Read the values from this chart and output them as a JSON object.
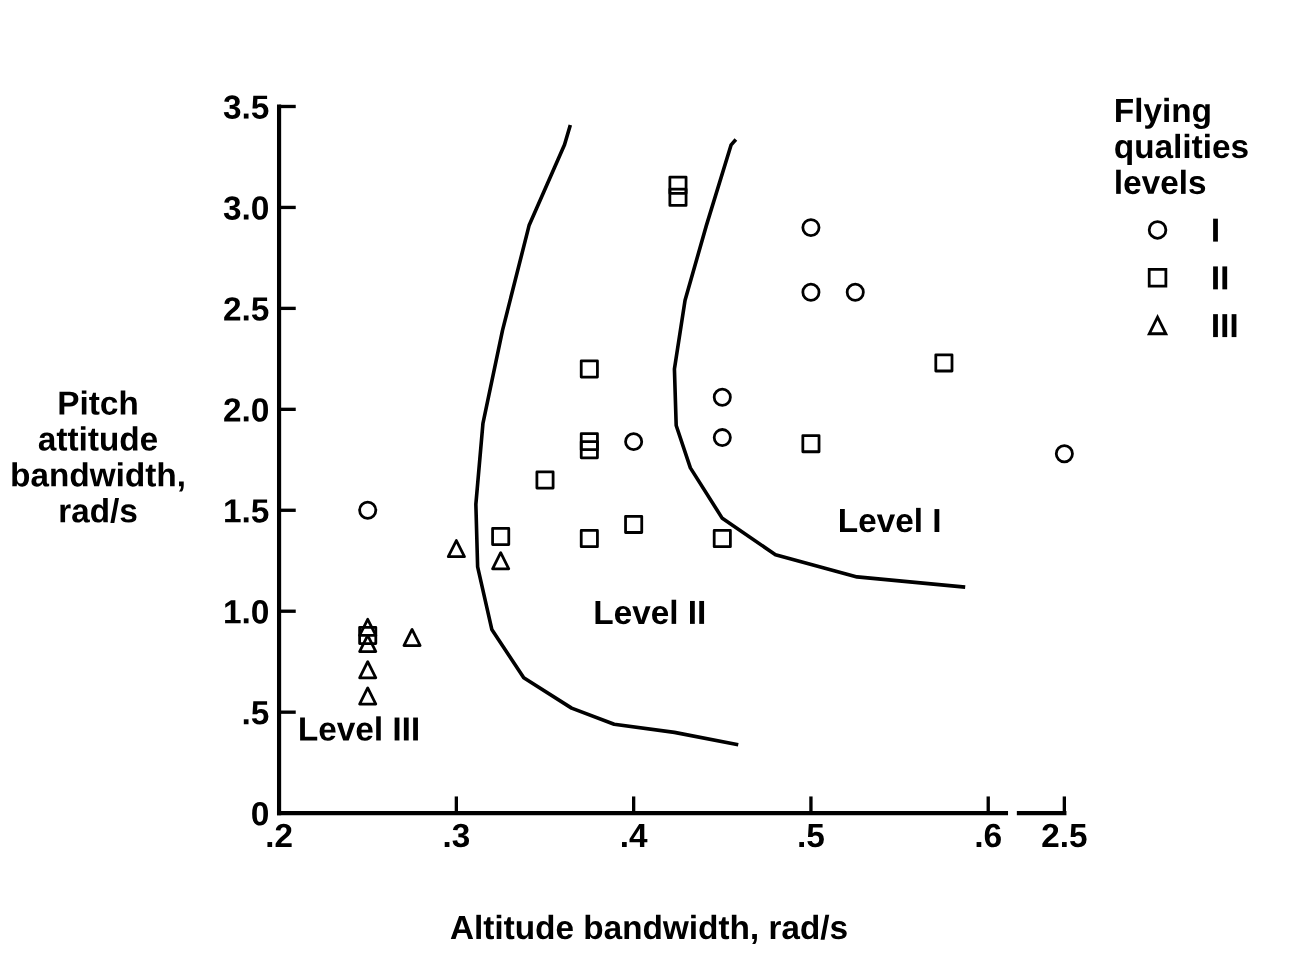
{
  "chart_data": [
    {
      "type": "scatter",
      "xlabel": "Altitude bandwidth, rad/s",
      "ylabel": "Pitch\nattitude\nbandwidth,\nrad/s",
      "legend_title": "Flying\nqualities\nlevels",
      "legend": "right",
      "xlim": [
        0.2,
        0.61
      ],
      "ylim": [
        0,
        3.5
      ],
      "xticks": [
        {
          "value": 0.2,
          "label": ".2"
        },
        {
          "value": 0.3,
          "label": ".3"
        },
        {
          "value": 0.4,
          "label": ".4"
        },
        {
          "value": 0.5,
          "label": ".5"
        },
        {
          "value": 0.6,
          "label": ".6"
        }
      ],
      "yticks": [
        0,
        {
          "value": 0.5,
          "label": ".5"
        },
        {
          "value": 1.0,
          "label": "1.0"
        },
        {
          "value": 1.5,
          "label": "1.5"
        },
        {
          "value": 2.0,
          "label": "2.0"
        },
        {
          "value": 2.5,
          "label": "2.5"
        },
        {
          "value": 3.0,
          "label": "3.0"
        },
        {
          "value": 3.5,
          "label": "3.5"
        }
      ],
      "grid": false,
      "annotations": [
        "Level I",
        "Level II",
        "Level III"
      ],
      "series": [
        {
          "name": "I",
          "marker": "circle",
          "color": "#000000",
          "x": [
            0.25,
            0.4,
            0.45,
            0.45,
            0.5,
            0.5,
            0.525
          ],
          "values": [
            1.5,
            1.84,
            2.06,
            1.86,
            2.9,
            2.58,
            2.58
          ]
        },
        {
          "name": "II",
          "marker": "square",
          "color": "#000000",
          "x": [
            0.25,
            0.325,
            0.35,
            0.375,
            0.375,
            0.375,
            0.375,
            0.4,
            0.425,
            0.425,
            0.45,
            0.5,
            0.575
          ],
          "values": [
            0.88,
            1.37,
            1.65,
            2.2,
            1.84,
            1.8,
            1.36,
            1.43,
            3.05,
            3.11,
            1.36,
            1.83,
            2.23
          ]
        },
        {
          "name": "III",
          "marker": "triangle",
          "color": "#000000",
          "x": [
            0.25,
            0.25,
            0.25,
            0.25,
            0.275,
            0.3,
            0.325
          ],
          "values": [
            0.92,
            0.84,
            0.71,
            0.58,
            0.87,
            1.31,
            1.25
          ]
        },
        {
          "type": "line",
          "marker": "none",
          "color": "#000000",
          "x": [
            0.364,
            0.361,
            0.341,
            0.326,
            0.315,
            0.311,
            0.312,
            0.32,
            0.338,
            0.365,
            0.389,
            0.423,
            0.458
          ],
          "values": [
            3.4,
            3.31,
            2.91,
            2.39,
            1.93,
            1.53,
            1.22,
            0.91,
            0.67,
            0.52,
            0.44,
            0.4,
            0.34
          ]
        },
        {
          "type": "line",
          "marker": "none",
          "color": "#000000",
          "x": [
            0.457,
            0.455,
            0.441,
            0.429,
            0.423,
            0.424,
            0.432,
            0.45,
            0.48,
            0.526,
            0.586
          ],
          "values": [
            3.33,
            3.31,
            2.91,
            2.54,
            2.2,
            1.92,
            1.71,
            1.46,
            1.28,
            1.17,
            1.12
          ]
        }
      ]
    },
    {
      "type": "scatter",
      "categories": [
        "2.5"
      ],
      "ylim": [
        0,
        3.5
      ],
      "tick_labels": "x",
      "grid": false,
      "series": [
        {
          "marker": "circle",
          "color": "#000000",
          "x": [
            "2.5"
          ],
          "values": [
            1.78
          ]
        }
      ]
    }
  ]
}
